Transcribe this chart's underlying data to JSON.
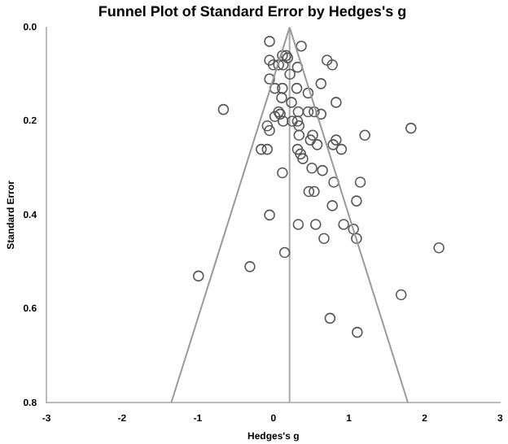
{
  "chart_data": {
    "type": "scatter",
    "title": "Funnel Plot of Standard Error by Hedges's g",
    "xlabel": "Hedges's g",
    "ylabel": "Standard Error",
    "xlim": [
      -3,
      3
    ],
    "xticks": [
      -3,
      -2,
      -1,
      0,
      1,
      2,
      3
    ],
    "ylim": [
      0.8,
      0
    ],
    "yticks": [
      {
        "value": 0,
        "label": "0.0"
      },
      {
        "value": 0.2,
        "label": "0.2"
      },
      {
        "value": 0.4,
        "label": "0.4"
      },
      {
        "value": 0.6,
        "label": "0.6"
      },
      {
        "value": 0.8,
        "label": "0.8"
      }
    ],
    "grid": false,
    "legend": false,
    "marker": "circle",
    "ref_lines": [
      {
        "axis": "x",
        "value": 0.215,
        "color": "#aaaaaa"
      }
    ],
    "series": [
      {
        "type": "line",
        "color": "#999999",
        "marker": "none",
        "x": [
          -1.35,
          0.215,
          1.78
        ],
        "values": [
          0.8,
          0,
          0.8
        ]
      },
      {
        "type": "scatter",
        "color": "#555555",
        "x": [
          -0.05,
          0.37,
          0.12,
          0.17,
          -0.05,
          0.19,
          0.71,
          0.78,
          0.0,
          0.07,
          0.13,
          0.32,
          0.22,
          -0.05,
          0.63,
          0.02,
          0.12,
          0.31,
          0.46,
          0.11,
          0.24,
          0.83,
          -0.66,
          0.07,
          0.09,
          0.33,
          0.46,
          0.54,
          0.63,
          0.02,
          0.13,
          0.25,
          0.32,
          0.34,
          -0.08,
          1.82,
          -0.05,
          1.21,
          0.52,
          0.34,
          0.83,
          0.49,
          0.58,
          0.79,
          0.9,
          -0.16,
          -0.08,
          0.32,
          0.36,
          0.39,
          0.51,
          0.65,
          0.12,
          0.8,
          1.15,
          0.47,
          0.54,
          1.1,
          0.78,
          -0.05,
          0.33,
          0.56,
          0.93,
          1.06,
          0.67,
          1.1,
          2.19,
          0.15,
          -0.31,
          -0.99,
          1.69,
          0.75,
          1.11
        ],
        "values": [
          0.03,
          0.04,
          0.06,
          0.06,
          0.07,
          0.065,
          0.07,
          0.08,
          0.08,
          0.08,
          0.08,
          0.085,
          0.1,
          0.11,
          0.12,
          0.13,
          0.13,
          0.13,
          0.14,
          0.15,
          0.16,
          0.16,
          0.175,
          0.18,
          0.185,
          0.18,
          0.18,
          0.18,
          0.185,
          0.19,
          0.2,
          0.2,
          0.2,
          0.21,
          0.21,
          0.215,
          0.22,
          0.23,
          0.23,
          0.23,
          0.24,
          0.24,
          0.25,
          0.25,
          0.26,
          0.26,
          0.26,
          0.26,
          0.27,
          0.28,
          0.3,
          0.305,
          0.31,
          0.33,
          0.33,
          0.35,
          0.35,
          0.37,
          0.38,
          0.4,
          0.42,
          0.42,
          0.42,
          0.43,
          0.45,
          0.45,
          0.47,
          0.48,
          0.51,
          0.53,
          0.57,
          0.62,
          0.65
        ]
      }
    ]
  }
}
